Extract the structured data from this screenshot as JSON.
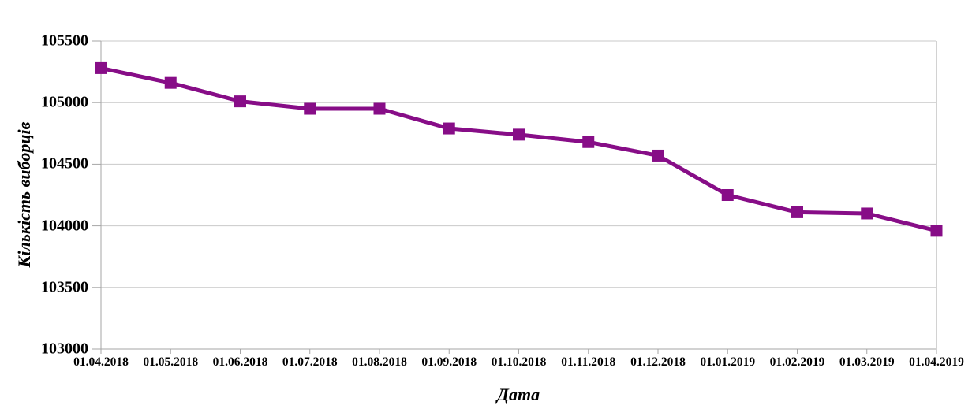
{
  "chart_data": {
    "type": "line",
    "title": "",
    "xlabel": "Дата",
    "ylabel": "Кількість виборців",
    "categories": [
      "01.04.2018",
      "01.05.2018",
      "01.06.2018",
      "01.07.2018",
      "01.08.2018",
      "01.09.2018",
      "01.10.2018",
      "01.11.2018",
      "01.12.2018",
      "01.01.2019",
      "01.02.2019",
      "01.03.2019",
      "01.04.2019"
    ],
    "series": [
      {
        "name": "Кількість виборців",
        "values": [
          105280,
          105160,
          105010,
          104950,
          104950,
          104790,
          104740,
          104680,
          104570,
          104250,
          104110,
          104100,
          103960
        ]
      }
    ],
    "ylim": [
      103000,
      105500
    ],
    "yticks": [
      103000,
      103500,
      104000,
      104500,
      105000,
      105500
    ],
    "grid": "horizontal-only",
    "legend": "none",
    "marker": {
      "shape": "square",
      "size": 15
    },
    "line_width": 5,
    "colors": {
      "line": "#870d87",
      "gridline": "#c9c9c9",
      "axis": "#a6a6a6",
      "text": "#000000"
    }
  }
}
